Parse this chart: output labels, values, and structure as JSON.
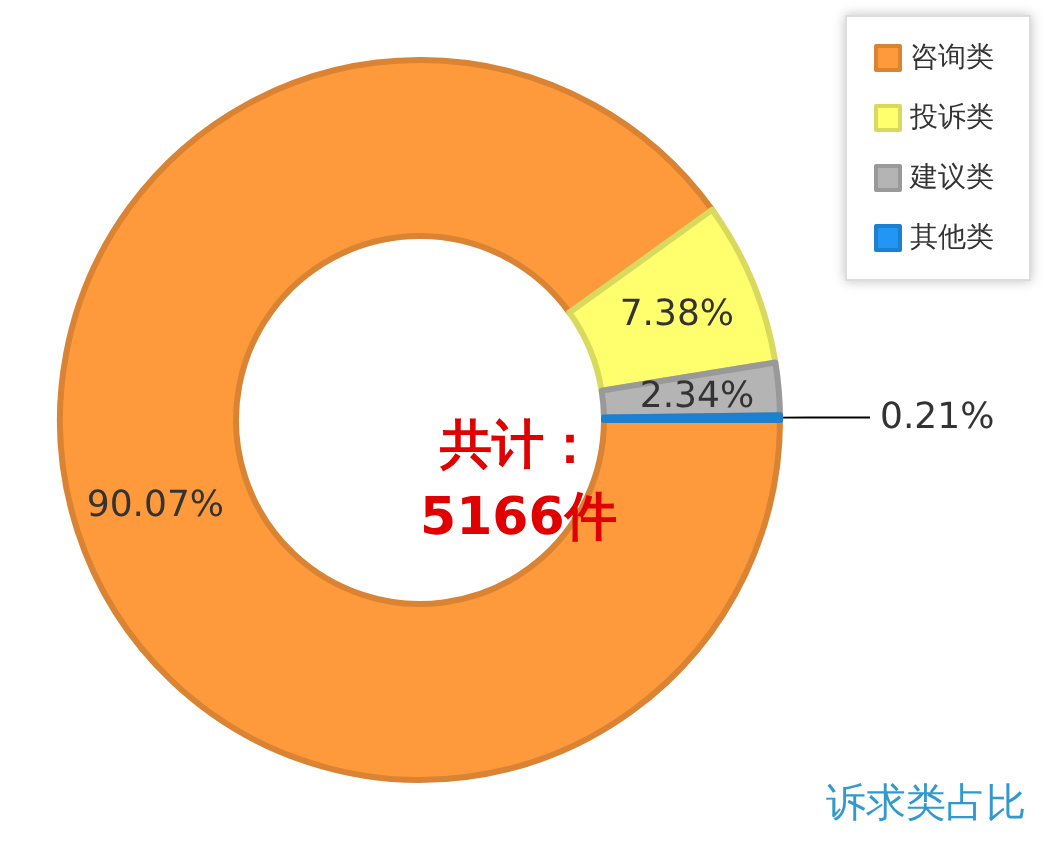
{
  "chart_data": {
    "type": "donut",
    "title": "诉求类占比",
    "categories": [
      "咨询类",
      "投诉类",
      "建议类",
      "其他类"
    ],
    "values": [
      90.07,
      7.38,
      2.34,
      0.21
    ],
    "colors": [
      "#ff9a3c",
      "#ffff6e",
      "#b4b4b4",
      "#2196f3"
    ],
    "annotations": [
      "共计：\n5166件"
    ],
    "value_labels": [
      "90.07%",
      "7.38%",
      "2.34%",
      "0.21%"
    ],
    "legend": "top right"
  }
}
